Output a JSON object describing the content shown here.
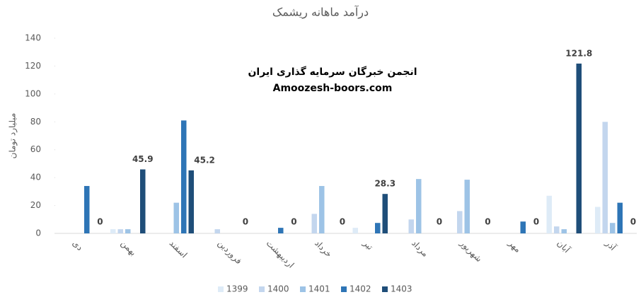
{
  "chart_data": {
    "type": "bar",
    "title": "درآمد ماهانه ریشمک",
    "y_label": "میلیارد تومان",
    "annotations": [
      "انجمن خبرگان سرمایه گذاری ایران",
      "Amoozesh-boors.com"
    ],
    "categories": [
      "دی",
      "بهمن",
      "اسفند",
      "فروردین",
      "اردیبهشت",
      "خرداد",
      "تیر",
      "مرداد",
      "شهریور",
      "مهر",
      "آبان",
      "آذر"
    ],
    "series": [
      {
        "name": "1399",
        "color": "#deebf7",
        "values": [
          null,
          3,
          null,
          null,
          null,
          null,
          4,
          null,
          null,
          null,
          27,
          19
        ]
      },
      {
        "name": "1400",
        "color": "#c3d6ee",
        "values": [
          null,
          3,
          null,
          3,
          null,
          14,
          null,
          10,
          16,
          null,
          5,
          80
        ]
      },
      {
        "name": "1401",
        "color": "#9dc3e6",
        "values": [
          null,
          3,
          22,
          null,
          null,
          34,
          null,
          39,
          38.5,
          null,
          3,
          7.5
        ]
      },
      {
        "name": "1402",
        "color": "#2e75b6",
        "values": [
          34,
          null,
          81,
          null,
          4,
          null,
          7.5,
          null,
          null,
          8.5,
          null,
          22
        ]
      },
      {
        "name": "1403",
        "color": "#1f4e79",
        "values": [
          0,
          45.9,
          45.2,
          0,
          0,
          0,
          28.3,
          0,
          0,
          0,
          121.8,
          0
        ],
        "data_labels": true
      }
    ],
    "ylim": [
      0,
      140
    ],
    "yticks": [
      0,
      20,
      40,
      60,
      80,
      100,
      120,
      140
    ],
    "grid": false,
    "legend": "bottom"
  }
}
